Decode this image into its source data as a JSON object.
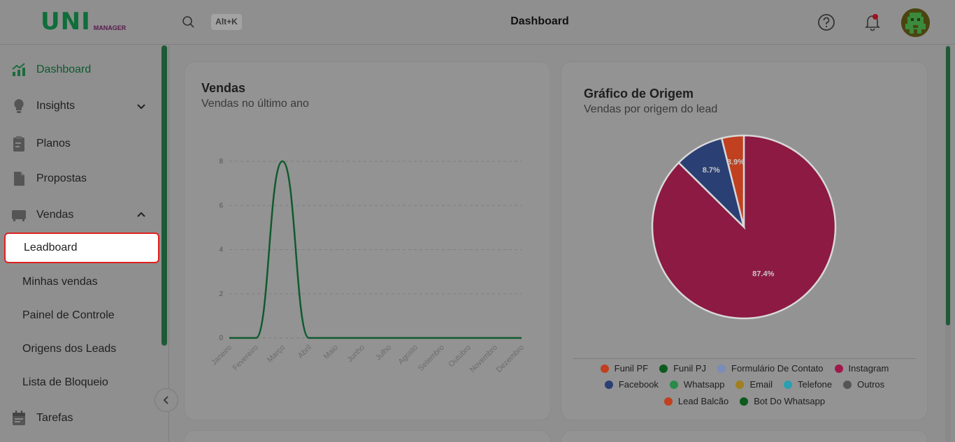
{
  "header": {
    "logo_main": "UNI",
    "logo_sub": "MANAGER",
    "shortcut": "Alt+K",
    "title": "Dashboard"
  },
  "sidebar": {
    "items": [
      {
        "label": "Dashboard",
        "icon": "chart-icon",
        "active": true
      },
      {
        "label": "Insights",
        "icon": "lightbulb-icon",
        "chevron": "down"
      },
      {
        "label": "Planos",
        "icon": "clipboard-icon"
      },
      {
        "label": "Propostas",
        "icon": "document-icon"
      },
      {
        "label": "Vendas",
        "icon": "store-icon",
        "chevron": "up"
      }
    ],
    "sub_items": [
      {
        "label": "Leadboard",
        "selected": true
      },
      {
        "label": "Minhas vendas"
      },
      {
        "label": "Painel de Controle"
      },
      {
        "label": "Origens dos Leads"
      },
      {
        "label": "Lista de Bloqueio"
      }
    ],
    "bottom_item": {
      "label": "Tarefas",
      "icon": "calendar-icon"
    }
  },
  "sales_card": {
    "title": "Vendas",
    "subtitle": "Vendas no último ano"
  },
  "origin_card": {
    "title": "Gráfico de Origem",
    "subtitle": "Vendas por origem do lead"
  },
  "colors": {
    "brand": "#0f6e3a",
    "line": "#0f5a2e",
    "instagram": "#8c1a42",
    "facebook": "#2a3f73",
    "funil_pf": "#c04020"
  },
  "chart_data": [
    {
      "type": "line",
      "categories": [
        "Janeiro",
        "Fevereiro",
        "Março",
        "Abril",
        "Maio",
        "Junho",
        "Julho",
        "Agosto",
        "Setembro",
        "Outubro",
        "Novembro",
        "Dezembro"
      ],
      "series": [
        {
          "values": [
            0,
            0,
            8,
            0,
            0,
            0,
            0,
            0,
            0,
            0,
            0,
            0
          ]
        }
      ],
      "yticks": [
        0,
        2,
        4,
        6,
        8
      ],
      "ylim": [
        0,
        8
      ],
      "grid": true
    },
    {
      "type": "pie",
      "slices": [
        {
          "name": "Instagram",
          "value": 87.4,
          "label": "87.4%",
          "color": "#8c1a42"
        },
        {
          "name": "Facebook",
          "value": 8.7,
          "label": "8.7%",
          "color": "#2a3f73"
        },
        {
          "name": "Funil PF",
          "value": 3.9,
          "label": "3.9%",
          "color": "#c04020"
        }
      ],
      "legend": [
        [
          {
            "name": "Funil PF",
            "color": "#c04020"
          },
          {
            "name": "Funil PJ",
            "color": "#0c5a1e"
          },
          {
            "name": "Formulário De Contato",
            "color": "#7a8cb8"
          },
          {
            "name": "Instagram",
            "color": "#a0184a"
          }
        ],
        [
          {
            "name": "Facebook",
            "color": "#2a3f73"
          },
          {
            "name": "Whatsapp",
            "color": "#2a8a4a"
          },
          {
            "name": "Email",
            "color": "#a08020"
          },
          {
            "name": "Telefone",
            "color": "#2aa0b0"
          },
          {
            "name": "Outros",
            "color": "#555555"
          }
        ],
        [
          {
            "name": "Lead Balcão",
            "color": "#c04020"
          },
          {
            "name": "Bot Do Whatsapp",
            "color": "#0c5a1e"
          }
        ]
      ],
      "legend_position": "bottom"
    }
  ]
}
